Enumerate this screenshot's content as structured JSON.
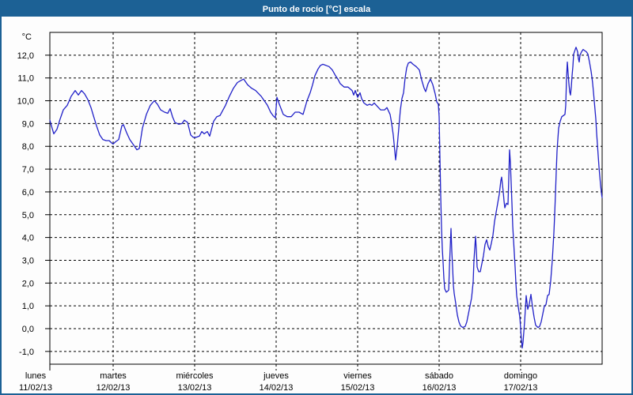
{
  "window": {
    "title": "Punto de rocío [°C] escala",
    "title_bar_color": "#1c6195",
    "border_color": "#1c6195",
    "background_color": "#fdfdfd"
  },
  "chart_data": {
    "type": "line",
    "title": "Punto de rocío [°C] escala",
    "unit_label": "°C",
    "line_color": "#2121c8",
    "grid": "dashed",
    "legend": "none",
    "x_range_days": [
      0.223,
      7.0
    ],
    "y_axis_range": [
      -1.55,
      13.0
    ],
    "y_ticks": [
      {
        "value": 12,
        "label": "12,0"
      },
      {
        "value": 11,
        "label": "11,0"
      },
      {
        "value": 10,
        "label": "10,0"
      },
      {
        "value": 9,
        "label": "9,0"
      },
      {
        "value": 8,
        "label": "8,0"
      },
      {
        "value": 7,
        "label": "7,0"
      },
      {
        "value": 6,
        "label": "6,0"
      },
      {
        "value": 5,
        "label": "5,0"
      },
      {
        "value": 4,
        "label": "4,0"
      },
      {
        "value": 3,
        "label": "3,0"
      },
      {
        "value": 2,
        "label": "2,0"
      },
      {
        "value": 1,
        "label": "1,0"
      },
      {
        "value": 0,
        "label": "0,0"
      },
      {
        "value": -1,
        "label": "-1,0"
      }
    ],
    "x_ticks": [
      {
        "day": "lunes",
        "date": "11/02/13",
        "day_index": 0
      },
      {
        "day": "martes",
        "date": "12/02/13",
        "day_index": 1
      },
      {
        "day": "miércoles",
        "date": "13/02/13",
        "day_index": 2
      },
      {
        "day": "jueves",
        "date": "14/02/13",
        "day_index": 3
      },
      {
        "day": "viernes",
        "date": "15/02/13",
        "day_index": 4
      },
      {
        "day": "sábado",
        "date": "16/02/13",
        "day_index": 5
      },
      {
        "day": "domingo",
        "date": "17/02/13",
        "day_index": 6
      }
    ],
    "series": [
      {
        "name": "Punto de rocío",
        "x_unit": "days_since_2013-02-11_00:00",
        "y_unit": "°C",
        "points": [
          [
            0.223,
            9.15
          ],
          [
            0.243,
            8.9
          ],
          [
            0.272,
            8.55
          ],
          [
            0.311,
            8.75
          ],
          [
            0.35,
            9.2
          ],
          [
            0.388,
            9.6
          ],
          [
            0.437,
            9.8
          ],
          [
            0.485,
            10.2
          ],
          [
            0.534,
            10.45
          ],
          [
            0.573,
            10.25
          ],
          [
            0.612,
            10.45
          ],
          [
            0.65,
            10.3
          ],
          [
            0.689,
            10.05
          ],
          [
            0.728,
            9.7
          ],
          [
            0.757,
            9.35
          ],
          [
            0.796,
            8.9
          ],
          [
            0.835,
            8.5
          ],
          [
            0.874,
            8.3
          ],
          [
            0.913,
            8.25
          ],
          [
            0.951,
            8.25
          ],
          [
            0.981,
            8.15
          ],
          [
            1.0,
            8.1
          ],
          [
            1.029,
            8.2
          ],
          [
            1.068,
            8.3
          ],
          [
            1.107,
            8.9
          ],
          [
            1.126,
            8.95
          ],
          [
            1.165,
            8.6
          ],
          [
            1.204,
            8.3
          ],
          [
            1.252,
            8.05
          ],
          [
            1.291,
            7.85
          ],
          [
            1.32,
            7.9
          ],
          [
            1.359,
            8.8
          ],
          [
            1.408,
            9.4
          ],
          [
            1.456,
            9.8
          ],
          [
            1.505,
            10.0
          ],
          [
            1.544,
            9.85
          ],
          [
            1.583,
            9.6
          ],
          [
            1.631,
            9.5
          ],
          [
            1.67,
            9.45
          ],
          [
            1.699,
            9.65
          ],
          [
            1.728,
            9.3
          ],
          [
            1.757,
            9.05
          ],
          [
            1.806,
            8.97
          ],
          [
            1.845,
            9.0
          ],
          [
            1.874,
            9.15
          ],
          [
            1.913,
            9.05
          ],
          [
            1.951,
            8.5
          ],
          [
            1.981,
            8.4
          ],
          [
            2.019,
            8.4
          ],
          [
            2.058,
            8.45
          ],
          [
            2.087,
            8.65
          ],
          [
            2.117,
            8.55
          ],
          [
            2.155,
            8.65
          ],
          [
            2.184,
            8.45
          ],
          [
            2.233,
            9.1
          ],
          [
            2.272,
            9.3
          ],
          [
            2.311,
            9.35
          ],
          [
            2.379,
            9.8
          ],
          [
            2.427,
            10.2
          ],
          [
            2.476,
            10.55
          ],
          [
            2.524,
            10.8
          ],
          [
            2.573,
            10.9
          ],
          [
            2.602,
            10.95
          ],
          [
            2.65,
            10.7
          ],
          [
            2.699,
            10.55
          ],
          [
            2.748,
            10.45
          ],
          [
            2.816,
            10.2
          ],
          [
            2.845,
            10.05
          ],
          [
            2.893,
            9.8
          ],
          [
            2.932,
            9.5
          ],
          [
            2.961,
            9.35
          ],
          [
            2.99,
            9.25
          ],
          [
            3.01,
            10.15
          ],
          [
            3.039,
            9.85
          ],
          [
            3.087,
            9.4
          ],
          [
            3.136,
            9.3
          ],
          [
            3.184,
            9.3
          ],
          [
            3.233,
            9.5
          ],
          [
            3.282,
            9.5
          ],
          [
            3.33,
            9.4
          ],
          [
            3.379,
            10.0
          ],
          [
            3.417,
            10.35
          ],
          [
            3.447,
            10.7
          ],
          [
            3.476,
            11.1
          ],
          [
            3.515,
            11.4
          ],
          [
            3.544,
            11.55
          ],
          [
            3.573,
            11.6
          ],
          [
            3.612,
            11.55
          ],
          [
            3.65,
            11.5
          ],
          [
            3.689,
            11.35
          ],
          [
            3.728,
            11.1
          ],
          [
            3.757,
            10.95
          ],
          [
            3.786,
            10.75
          ],
          [
            3.835,
            10.6
          ],
          [
            3.883,
            10.6
          ],
          [
            3.932,
            10.45
          ],
          [
            3.951,
            10.25
          ],
          [
            3.971,
            10.45
          ],
          [
            4.0,
            10.15
          ],
          [
            4.029,
            10.35
          ],
          [
            4.049,
            10.1
          ],
          [
            4.078,
            9.9
          ],
          [
            4.117,
            9.8
          ],
          [
            4.146,
            9.85
          ],
          [
            4.175,
            9.8
          ],
          [
            4.204,
            9.9
          ],
          [
            4.243,
            9.75
          ],
          [
            4.282,
            9.6
          ],
          [
            4.33,
            9.6
          ],
          [
            4.359,
            9.7
          ],
          [
            4.398,
            9.4
          ],
          [
            4.417,
            9.0
          ],
          [
            4.437,
            8.5
          ],
          [
            4.466,
            7.4
          ],
          [
            4.485,
            8.0
          ],
          [
            4.505,
            8.8
          ],
          [
            4.524,
            9.6
          ],
          [
            4.544,
            10.1
          ],
          [
            4.563,
            10.35
          ],
          [
            4.583,
            11.0
          ],
          [
            4.602,
            11.45
          ],
          [
            4.621,
            11.65
          ],
          [
            4.65,
            11.7
          ],
          [
            4.68,
            11.6
          ],
          [
            4.718,
            11.5
          ],
          [
            4.757,
            11.35
          ],
          [
            4.786,
            10.9
          ],
          [
            4.816,
            10.55
          ],
          [
            4.835,
            10.4
          ],
          [
            4.864,
            10.75
          ],
          [
            4.893,
            10.95
          ],
          [
            4.922,
            10.7
          ],
          [
            4.951,
            10.3
          ],
          [
            4.971,
            9.95
          ],
          [
            4.99,
            9.85
          ],
          [
            5.0,
            9.3
          ],
          [
            5.01,
            7.5
          ],
          [
            5.019,
            5.8
          ],
          [
            5.029,
            4.4
          ],
          [
            5.039,
            3.5
          ],
          [
            5.049,
            2.9
          ],
          [
            5.058,
            2.2
          ],
          [
            5.068,
            1.75
          ],
          [
            5.087,
            1.6
          ],
          [
            5.107,
            1.65
          ],
          [
            5.117,
            1.7
          ],
          [
            5.126,
            2.7
          ],
          [
            5.146,
            4.4
          ],
          [
            5.155,
            3.4
          ],
          [
            5.165,
            2.7
          ],
          [
            5.175,
            1.9
          ],
          [
            5.184,
            1.55
          ],
          [
            5.204,
            1.1
          ],
          [
            5.223,
            0.6
          ],
          [
            5.243,
            0.3
          ],
          [
            5.262,
            0.12
          ],
          [
            5.291,
            0.05
          ],
          [
            5.32,
            0.1
          ],
          [
            5.34,
            0.3
          ],
          [
            5.359,
            0.65
          ],
          [
            5.379,
            1.0
          ],
          [
            5.398,
            1.35
          ],
          [
            5.417,
            2.05
          ],
          [
            5.427,
            3.0
          ],
          [
            5.447,
            4.05
          ],
          [
            5.456,
            3.45
          ],
          [
            5.466,
            2.7
          ],
          [
            5.485,
            2.5
          ],
          [
            5.505,
            2.5
          ],
          [
            5.524,
            2.85
          ],
          [
            5.544,
            3.2
          ],
          [
            5.563,
            3.7
          ],
          [
            5.583,
            3.9
          ],
          [
            5.602,
            3.6
          ],
          [
            5.621,
            3.45
          ],
          [
            5.641,
            3.75
          ],
          [
            5.66,
            4.1
          ],
          [
            5.68,
            4.7
          ],
          [
            5.699,
            5.1
          ],
          [
            5.718,
            5.5
          ],
          [
            5.738,
            5.9
          ],
          [
            5.757,
            6.5
          ],
          [
            5.767,
            6.65
          ],
          [
            5.786,
            6.0
          ],
          [
            5.796,
            5.6
          ],
          [
            5.806,
            5.3
          ],
          [
            5.825,
            5.5
          ],
          [
            5.845,
            5.45
          ],
          [
            5.854,
            6.6
          ],
          [
            5.864,
            7.85
          ],
          [
            5.874,
            7.3
          ],
          [
            5.883,
            6.5
          ],
          [
            5.893,
            5.5
          ],
          [
            5.903,
            4.5
          ],
          [
            5.922,
            3.3
          ],
          [
            5.932,
            2.7
          ],
          [
            5.942,
            2.0
          ],
          [
            5.951,
            1.45
          ],
          [
            5.971,
            0.95
          ],
          [
            5.99,
            0.5
          ],
          [
            6.0,
            0.0
          ],
          [
            6.01,
            -0.5
          ],
          [
            6.019,
            -0.85
          ],
          [
            6.029,
            -0.6
          ],
          [
            6.049,
            0.3
          ],
          [
            6.068,
            1.45
          ],
          [
            6.087,
            0.85
          ],
          [
            6.107,
            1.1
          ],
          [
            6.126,
            1.5
          ],
          [
            6.146,
            0.95
          ],
          [
            6.165,
            0.5
          ],
          [
            6.184,
            0.15
          ],
          [
            6.214,
            0.05
          ],
          [
            6.233,
            0.1
          ],
          [
            6.252,
            0.3
          ],
          [
            6.272,
            0.65
          ],
          [
            6.291,
            1.0
          ],
          [
            6.311,
            1.05
          ],
          [
            6.33,
            1.45
          ],
          [
            6.35,
            1.5
          ],
          [
            6.369,
            2.1
          ],
          [
            6.388,
            3.0
          ],
          [
            6.408,
            4.2
          ],
          [
            6.417,
            5.0
          ],
          [
            6.427,
            5.9
          ],
          [
            6.437,
            6.9
          ],
          [
            6.447,
            7.8
          ],
          [
            6.456,
            8.3
          ],
          [
            6.466,
            8.8
          ],
          [
            6.485,
            9.1
          ],
          [
            6.505,
            9.3
          ],
          [
            6.524,
            9.35
          ],
          [
            6.544,
            9.4
          ],
          [
            6.553,
            9.8
          ],
          [
            6.563,
            11.0
          ],
          [
            6.573,
            11.7
          ],
          [
            6.583,
            11.2
          ],
          [
            6.592,
            10.75
          ],
          [
            6.602,
            10.4
          ],
          [
            6.612,
            10.25
          ],
          [
            6.621,
            10.6
          ],
          [
            6.631,
            11.1
          ],
          [
            6.641,
            11.5
          ],
          [
            6.65,
            12.05
          ],
          [
            6.67,
            12.25
          ],
          [
            6.68,
            12.35
          ],
          [
            6.699,
            12.15
          ],
          [
            6.709,
            11.85
          ],
          [
            6.718,
            11.7
          ],
          [
            6.728,
            12.0
          ],
          [
            6.748,
            12.15
          ],
          [
            6.767,
            12.25
          ],
          [
            6.786,
            12.2
          ],
          [
            6.806,
            12.15
          ],
          [
            6.825,
            12.05
          ],
          [
            6.845,
            11.7
          ],
          [
            6.864,
            11.3
          ],
          [
            6.874,
            11.05
          ],
          [
            6.883,
            10.8
          ],
          [
            6.893,
            10.4
          ],
          [
            6.903,
            10.0
          ],
          [
            6.913,
            9.6
          ],
          [
            6.922,
            9.2
          ],
          [
            6.932,
            8.6
          ],
          [
            6.942,
            8.1
          ],
          [
            6.951,
            7.6
          ],
          [
            6.961,
            7.1
          ],
          [
            6.971,
            6.7
          ],
          [
            6.981,
            6.3
          ],
          [
            6.99,
            6.0
          ],
          [
            6.995,
            5.85
          ],
          [
            7.0,
            5.75
          ]
        ]
      }
    ]
  }
}
